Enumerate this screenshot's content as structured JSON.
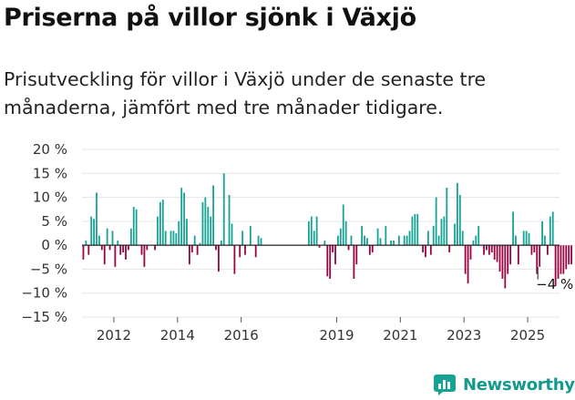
{
  "header": {
    "title": "Priserna på villor sjönk i Växjö",
    "subtitle": "Prisutveckling för villor i Växjö under de senaste tre månaderna, jämfört med tre månader tidigare."
  },
  "brand": {
    "name": "Newsworthy",
    "icon": "newsworthy-logo-icon"
  },
  "colors": {
    "positive": "#16a394",
    "negative": "#990543",
    "axis": "#222222",
    "grid": "#e6e6e6"
  },
  "chart_data": {
    "type": "bar",
    "x_start": "2011-01",
    "x_frequency": "monthly",
    "y_ticks": [
      {
        "value": 20,
        "label": "20 %"
      },
      {
        "value": 15,
        "label": "15 %"
      },
      {
        "value": 10,
        "label": "10 %"
      },
      {
        "value": 5,
        "label": "5 %"
      },
      {
        "value": 0,
        "label": "0 %"
      },
      {
        "value": -5,
        "label": "−5 %"
      },
      {
        "value": -10,
        "label": "−10 %"
      },
      {
        "value": -15,
        "label": "−15 %"
      }
    ],
    "x_ticks": [
      {
        "date": "2012-01",
        "label": "2012"
      },
      {
        "date": "2014-01",
        "label": "2014"
      },
      {
        "date": "2016-01",
        "label": "2016"
      },
      {
        "date": "2019-01",
        "label": "2019"
      },
      {
        "date": "2021-01",
        "label": "2021"
      },
      {
        "date": "2023-01",
        "label": "2023"
      },
      {
        "date": "2025-01",
        "label": "2025"
      }
    ],
    "ylim": [
      -15,
      20
    ],
    "xlim": [
      "2011-01",
      "2025-12"
    ],
    "annotation": {
      "date": "2025-05",
      "label": "−4 %"
    },
    "values": [
      -3,
      1,
      -2,
      6,
      5.5,
      11,
      2,
      -1,
      -4,
      3.5,
      -1,
      3,
      -4.5,
      1,
      -2,
      -1.5,
      -3,
      -1,
      3.5,
      8,
      7.5,
      0,
      -2,
      -4.5,
      -1,
      0,
      0,
      -1,
      6,
      9,
      9.5,
      3,
      0,
      3,
      3,
      2.5,
      5,
      12,
      11,
      5.5,
      -4,
      -1.5,
      2,
      -2,
      0.5,
      9,
      10,
      8,
      6,
      12.5,
      -1,
      -5.5,
      1,
      15,
      0,
      10.5,
      4.5,
      -6,
      0,
      -2.5,
      3,
      -2,
      0,
      4,
      0,
      -2.5,
      2,
      1.5,
      0,
      0,
      0,
      0,
      0,
      0,
      0,
      0,
      0,
      0,
      0,
      0,
      0,
      0,
      0,
      0,
      0,
      5,
      6,
      3,
      6,
      -0.5,
      0,
      1,
      -6.5,
      -7,
      -1.5,
      -4,
      2,
      3.5,
      8.5,
      5,
      -1,
      2,
      -7,
      -4,
      0,
      4,
      2,
      1.5,
      -2,
      -1.5,
      0,
      3.5,
      1.5,
      0,
      4,
      0,
      1,
      1,
      0,
      2,
      0,
      2,
      2,
      3,
      6,
      6.5,
      6.5,
      0,
      -1.5,
      -2.5,
      3,
      -2,
      4,
      10,
      2,
      5.5,
      6,
      12,
      -1.5,
      0,
      4.5,
      13,
      10.5,
      3,
      -6,
      -8,
      -3,
      1,
      2,
      4,
      0,
      -2,
      -1,
      -2,
      -1.5,
      -3,
      -3.5,
      -5.5,
      -7,
      -9,
      -6,
      -4,
      7,
      2,
      -4,
      0,
      3,
      3,
      2.5,
      -2,
      -1.5,
      -6,
      -4.5,
      5,
      2,
      -2,
      6,
      7,
      -8.5,
      -7,
      -6,
      -6,
      -5,
      -4,
      -4
    ]
  }
}
